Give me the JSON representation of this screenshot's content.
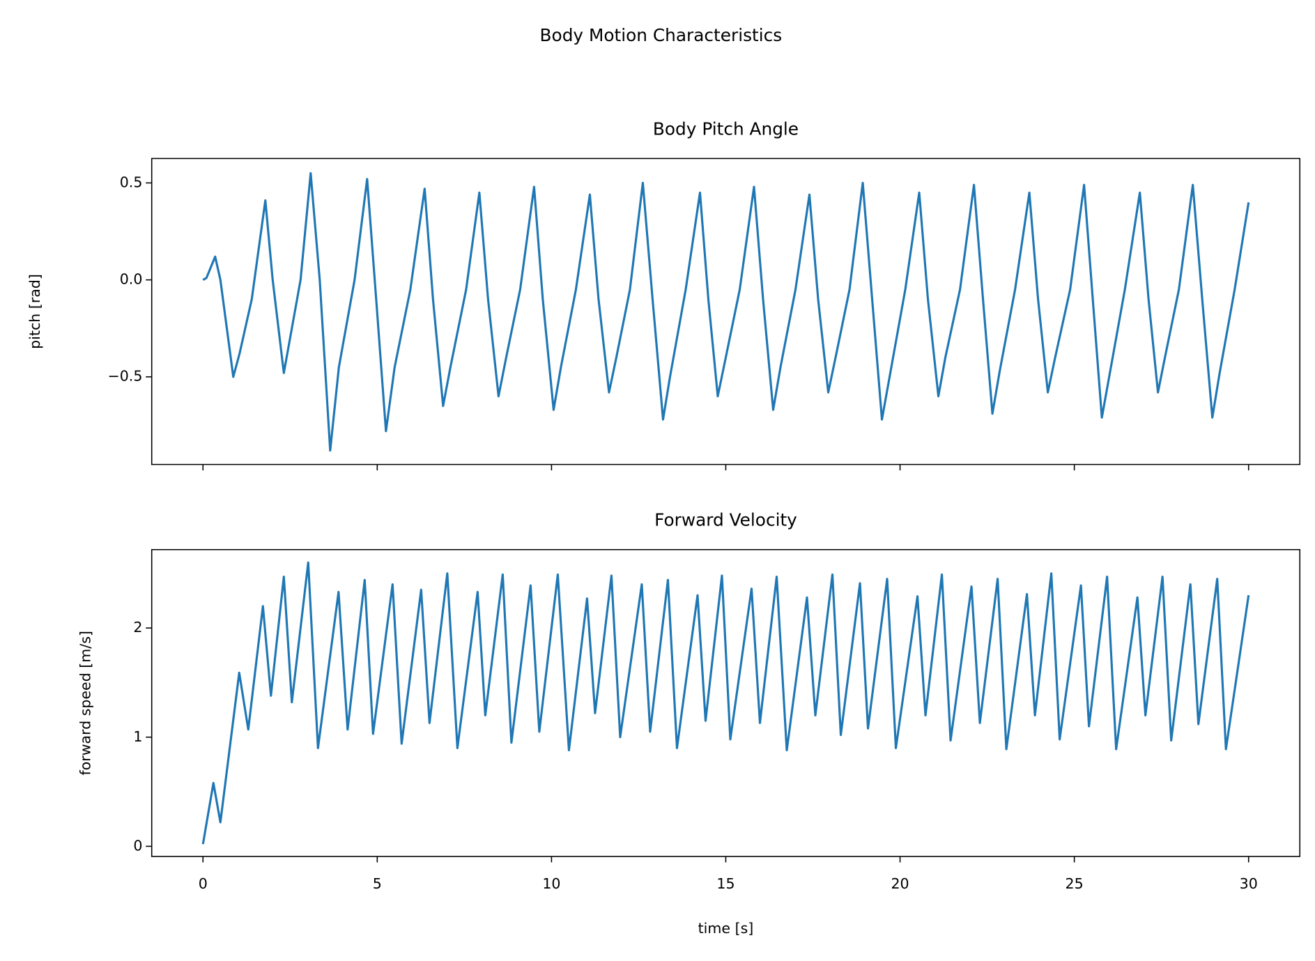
{
  "title": "Body Motion Characteristics",
  "chart_data": [
    {
      "type": "line",
      "title": "Body Pitch Angle",
      "ylabel": "pitch [rad]",
      "xlim": [
        -1.47,
        31.47
      ],
      "ylim": [
        -0.952,
        0.626
      ],
      "xticks": [
        0,
        5,
        10,
        15,
        20,
        25,
        30
      ],
      "show_xtick_labels": false,
      "yticks": [
        {
          "value": -0.5,
          "label": "−0.5"
        },
        {
          "value": 0,
          "label": "0.0"
        },
        0.5
      ],
      "x": [
        0,
        0.1,
        0.35,
        0.5,
        0.87,
        1.05,
        1.4,
        1.79,
        2.0,
        2.32,
        2.5,
        2.8,
        3.09,
        3.35,
        3.65,
        3.9,
        4.35,
        4.71,
        4.97,
        5.25,
        5.5,
        5.95,
        6.36,
        6.6,
        6.89,
        7.1,
        7.55,
        7.93,
        8.18,
        8.48,
        8.7,
        9.1,
        9.5,
        9.75,
        10.06,
        10.27,
        10.7,
        11.1,
        11.35,
        11.65,
        11.86,
        12.25,
        12.62,
        12.9,
        13.2,
        13.4,
        13.85,
        14.26,
        14.5,
        14.77,
        15.0,
        15.4,
        15.81,
        16.07,
        16.36,
        16.57,
        17.0,
        17.4,
        17.65,
        17.94,
        18.15,
        18.55,
        18.93,
        19.2,
        19.48,
        19.7,
        20.15,
        20.55,
        20.8,
        21.1,
        21.3,
        21.72,
        22.12,
        22.38,
        22.65,
        22.86,
        23.3,
        23.71,
        23.96,
        24.24,
        24.45,
        24.88,
        25.28,
        25.53,
        25.79,
        26.0,
        26.45,
        26.88,
        27.13,
        27.4,
        27.6,
        28.0,
        28.4,
        28.67,
        28.96,
        29.17,
        29.6,
        30
      ],
      "series": [
        {
          "color": "#1f77b4",
          "values": [
            0,
            0.01,
            0.12,
            0.0,
            -0.5,
            -0.38,
            -0.1,
            0.41,
            0.0,
            -0.48,
            -0.3,
            0.0,
            0.55,
            0.0,
            -0.88,
            -0.45,
            0.0,
            0.52,
            -0.1,
            -0.78,
            -0.45,
            -0.05,
            0.47,
            -0.1,
            -0.65,
            -0.45,
            -0.05,
            0.45,
            -0.1,
            -0.6,
            -0.4,
            -0.05,
            0.48,
            -0.1,
            -0.67,
            -0.45,
            -0.05,
            0.44,
            -0.1,
            -0.58,
            -0.4,
            -0.05,
            0.5,
            -0.1,
            -0.72,
            -0.5,
            -0.05,
            0.45,
            -0.1,
            -0.6,
            -0.4,
            -0.05,
            0.48,
            -0.1,
            -0.67,
            -0.45,
            -0.05,
            0.44,
            -0.1,
            -0.58,
            -0.4,
            -0.05,
            0.5,
            -0.1,
            -0.72,
            -0.5,
            -0.05,
            0.45,
            -0.1,
            -0.6,
            -0.4,
            -0.05,
            0.49,
            -0.1,
            -0.69,
            -0.47,
            -0.05,
            0.45,
            -0.1,
            -0.58,
            -0.4,
            -0.05,
            0.49,
            -0.1,
            -0.71,
            -0.5,
            -0.05,
            0.45,
            -0.1,
            -0.58,
            -0.4,
            -0.05,
            0.49,
            -0.1,
            -0.71,
            -0.48,
            -0.05,
            0.4
          ]
        }
      ]
    },
    {
      "type": "line",
      "title": "Forward Velocity",
      "ylabel": "forward speed [m/s]",
      "xlabel": "time [s]",
      "xlim": [
        -1.47,
        31.47
      ],
      "ylim": [
        -0.093,
        2.718
      ],
      "xticks": [
        0,
        5,
        10,
        15,
        20,
        25,
        30
      ],
      "show_xtick_labels": true,
      "yticks": [
        0,
        1,
        2
      ],
      "x": [
        0,
        0.3,
        0.5,
        1.04,
        1.3,
        1.72,
        1.95,
        2.32,
        2.55,
        3.02,
        3.3,
        3.89,
        4.15,
        4.64,
        4.88,
        5.44,
        5.7,
        6.26,
        6.5,
        7.01,
        7.3,
        7.88,
        8.1,
        8.6,
        8.85,
        9.4,
        9.65,
        10.18,
        10.5,
        11.02,
        11.25,
        11.72,
        11.97,
        12.59,
        12.83,
        13.34,
        13.6,
        14.19,
        14.42,
        14.89,
        15.13,
        15.74,
        15.98,
        16.46,
        16.75,
        17.33,
        17.57,
        18.06,
        18.3,
        18.85,
        19.08,
        19.63,
        19.88,
        20.5,
        20.73,
        21.2,
        21.45,
        22.05,
        22.29,
        22.8,
        23.05,
        23.64,
        23.87,
        24.34,
        24.58,
        25.19,
        25.42,
        25.94,
        26.2,
        26.81,
        27.04,
        27.53,
        27.78,
        28.33,
        28.56,
        29.1,
        29.35,
        30
      ],
      "series": [
        {
          "color": "#1f77b4",
          "values": [
            0.02,
            0.58,
            0.22,
            1.59,
            1.07,
            2.2,
            1.38,
            2.47,
            1.32,
            2.6,
            0.9,
            2.33,
            1.07,
            2.44,
            1.03,
            2.4,
            0.94,
            2.35,
            1.13,
            2.5,
            0.9,
            2.33,
            1.2,
            2.49,
            0.95,
            2.39,
            1.05,
            2.49,
            0.88,
            2.27,
            1.22,
            2.48,
            1.0,
            2.4,
            1.05,
            2.44,
            0.9,
            2.3,
            1.15,
            2.48,
            0.98,
            2.36,
            1.13,
            2.47,
            0.88,
            2.28,
            1.2,
            2.49,
            1.02,
            2.41,
            1.08,
            2.45,
            0.9,
            2.29,
            1.2,
            2.49,
            0.97,
            2.38,
            1.13,
            2.45,
            0.89,
            2.31,
            1.2,
            2.5,
            0.98,
            2.39,
            1.1,
            2.47,
            0.89,
            2.28,
            1.2,
            2.47,
            0.97,
            2.4,
            1.12,
            2.45,
            0.89,
            2.3
          ]
        }
      ]
    }
  ]
}
